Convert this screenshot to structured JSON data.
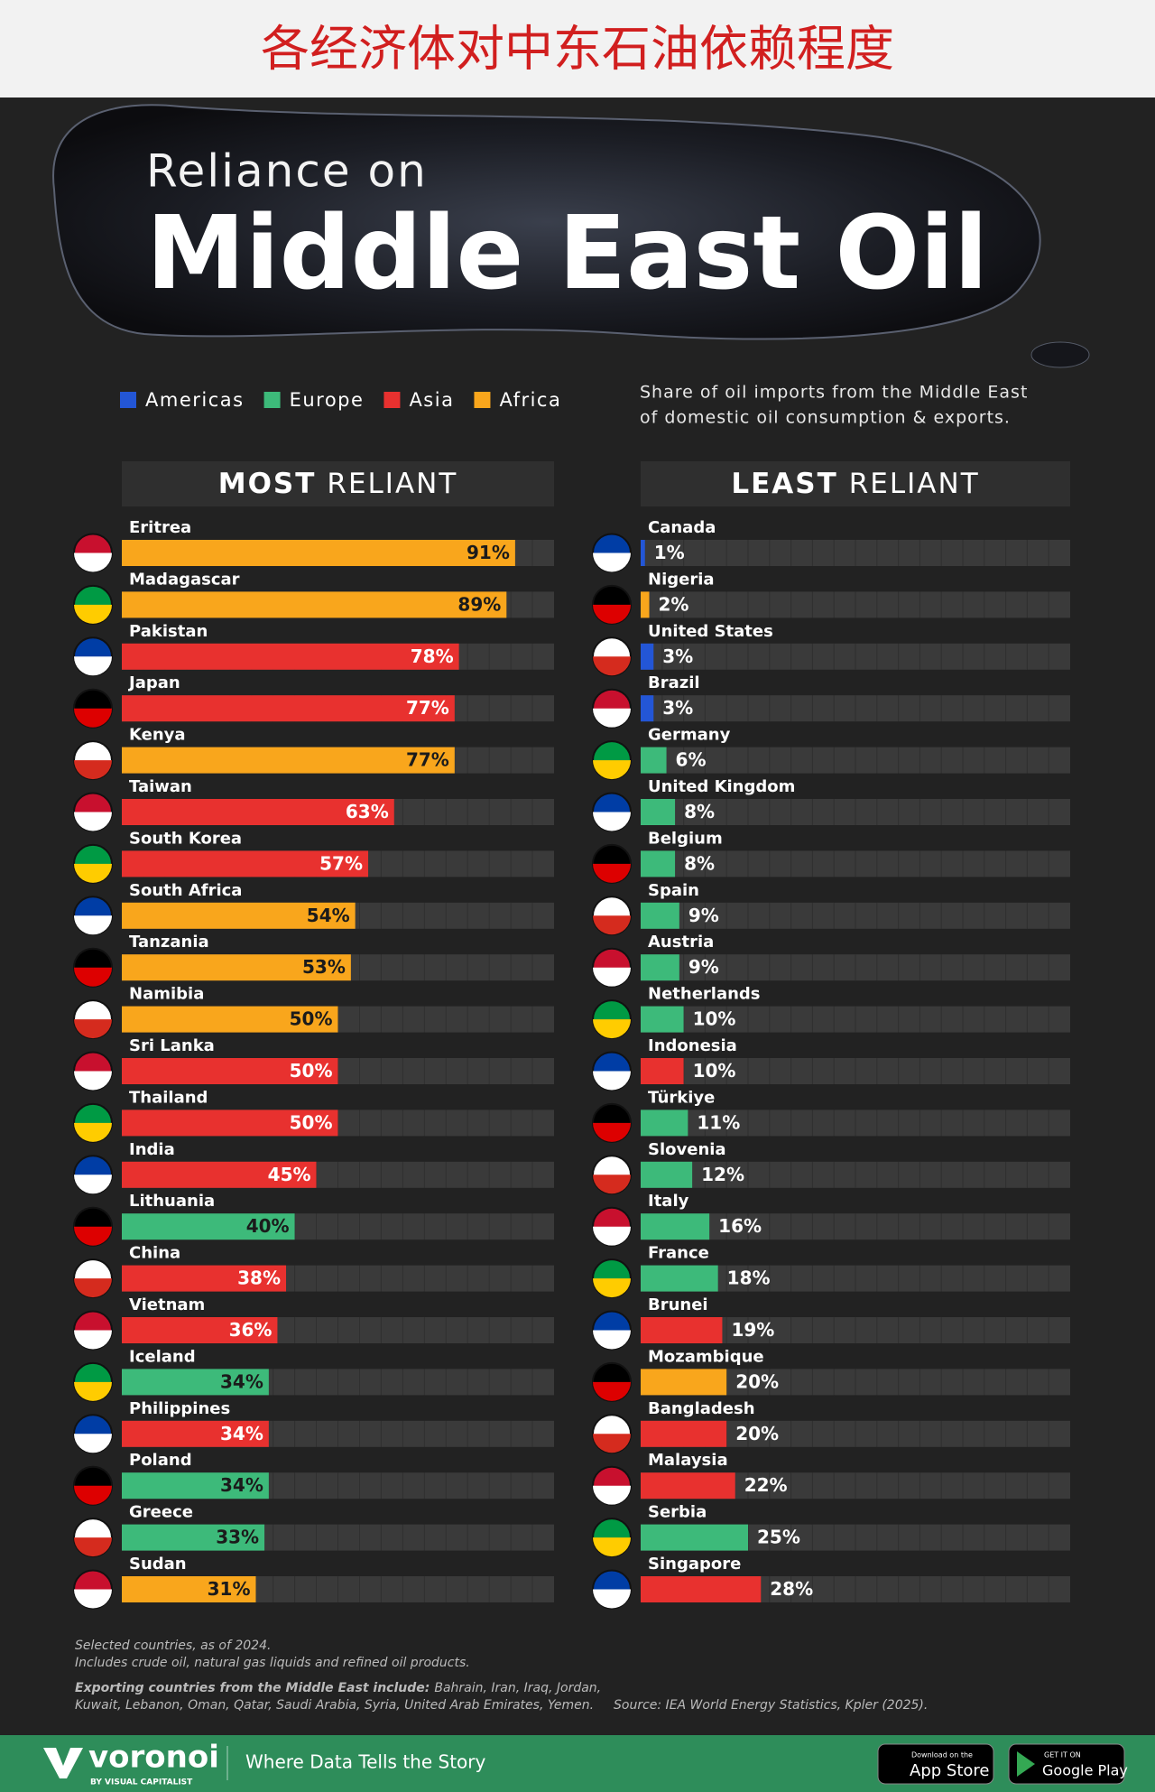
{
  "banner": {
    "title": "各经济体对中东石油依赖程度"
  },
  "header": {
    "kicker": "Reliance on",
    "title": "Middle East Oil",
    "subtitle": [
      "Share of oil imports from the Middle East",
      "of domestic oil consumption & exports."
    ]
  },
  "legend": [
    {
      "name": "Americas",
      "color": "#2356d6"
    },
    {
      "name": "Europe",
      "color": "#3dba7a"
    },
    {
      "name": "Asia",
      "color": "#e8312f"
    },
    {
      "name": "Africa",
      "color": "#f9a61c"
    }
  ],
  "chart_data": [
    {
      "type": "bar",
      "orientation": "horizontal",
      "heading": {
        "bold": "MOST",
        "rest": "RELIANT"
      },
      "categories": [
        "Eritrea",
        "Madagascar",
        "Pakistan",
        "Japan",
        "Kenya",
        "Taiwan",
        "South Korea",
        "South Africa",
        "Tanzania",
        "Namibia",
        "Sri Lanka",
        "Thailand",
        "India",
        "Lithuania",
        "China",
        "Vietnam",
        "Iceland",
        "Philippines",
        "Poland",
        "Greece",
        "Sudan"
      ],
      "values": [
        91,
        89,
        78,
        77,
        77,
        63,
        57,
        54,
        53,
        50,
        50,
        50,
        45,
        40,
        38,
        36,
        34,
        34,
        34,
        33,
        31
      ],
      "value_labels": [
        "91%",
        "89%",
        "78%",
        "77%",
        "77%",
        "63%",
        "57%",
        "54%",
        "53%",
        "50%",
        "50%",
        "50%",
        "45%",
        "40%",
        "38%",
        "36%",
        "34%",
        "34%",
        "34%",
        "33%",
        "31%"
      ],
      "colors": [
        "#f9a61c",
        "#f9a61c",
        "#e8312f",
        "#e8312f",
        "#f9a61c",
        "#e8312f",
        "#e8312f",
        "#f9a61c",
        "#f9a61c",
        "#f9a61c",
        "#e8312f",
        "#e8312f",
        "#e8312f",
        "#3dba7a",
        "#e8312f",
        "#e8312f",
        "#3dba7a",
        "#e8312f",
        "#3dba7a",
        "#3dba7a",
        "#f9a61c"
      ],
      "xlim": [
        0,
        100
      ],
      "label_position": "inside"
    },
    {
      "type": "bar",
      "orientation": "horizontal",
      "heading": {
        "bold": "LEAST",
        "rest": "RELIANT"
      },
      "categories": [
        "Canada",
        "Nigeria",
        "United States",
        "Brazil",
        "Germany",
        "United Kingdom",
        "Belgium",
        "Spain",
        "Austria",
        "Netherlands",
        "Indonesia",
        "Türkiye",
        "Slovenia",
        "Italy",
        "France",
        "Brunei",
        "Mozambique",
        "Bangladesh",
        "Malaysia",
        "Serbia",
        "Singapore"
      ],
      "values": [
        1,
        2,
        3,
        3,
        6,
        8,
        8,
        9,
        9,
        10,
        10,
        11,
        12,
        16,
        18,
        19,
        20,
        20,
        22,
        25,
        28
      ],
      "value_labels": [
        "1%",
        "2%",
        "3%",
        "3%",
        "6%",
        "8%",
        "8%",
        "9%",
        "9%",
        "10%",
        "10%",
        "11%",
        "12%",
        "16%",
        "18%",
        "19%",
        "20%",
        "20%",
        "22%",
        "25%",
        "28%"
      ],
      "colors": [
        "#2356d6",
        "#f9a61c",
        "#2356d6",
        "#2356d6",
        "#3dba7a",
        "#3dba7a",
        "#3dba7a",
        "#3dba7a",
        "#3dba7a",
        "#3dba7a",
        "#e8312f",
        "#3dba7a",
        "#3dba7a",
        "#3dba7a",
        "#3dba7a",
        "#e8312f",
        "#f9a61c",
        "#e8312f",
        "#e8312f",
        "#3dba7a",
        "#e8312f"
      ],
      "xlim": [
        0,
        100
      ],
      "label_position": "outside"
    }
  ],
  "notes": {
    "lines": [
      "Selected countries, as of 2024.",
      "Includes crude oil, natural gas liquids and refined oil products."
    ],
    "exporters_label": "Exporting countries from the Middle East include:",
    "exporters": [
      "Bahrain, Iran, Iraq, Jordan,",
      "Kuwait, Lebanon, Oman, Qatar, Saudi Arabia, Syria, United Arab Emirates, Yemen."
    ],
    "source": "Source: IEA World Energy Statistics, Kpler (2025)."
  },
  "footer": {
    "brand": "voronoi",
    "brand_sub": "BY VISUAL CAPITALIST",
    "tagline": "Where Data Tells the Story",
    "app_store": {
      "small": "Download on the",
      "big": "App Store"
    },
    "google_play": {
      "small": "GET IT ON",
      "big": "Google Play"
    }
  }
}
